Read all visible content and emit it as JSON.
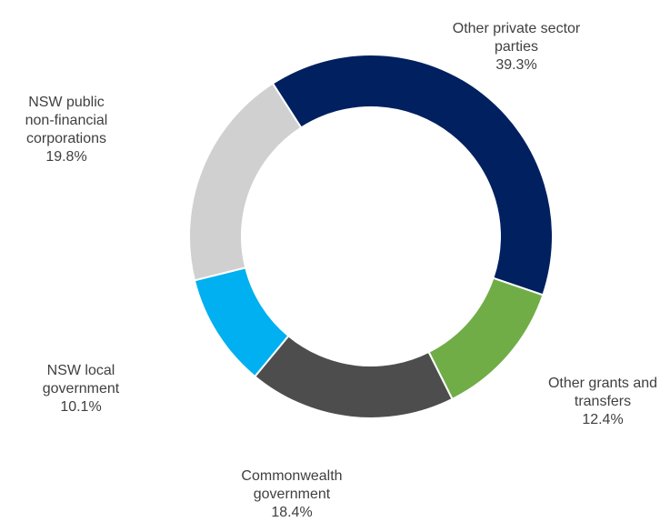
{
  "chart_data": {
    "type": "pie",
    "style": "donut",
    "start_angle_deg": -32.7,
    "direction": "clockwise",
    "slices": [
      {
        "label_lines": [
          "Other private sector",
          "parties"
        ],
        "value": 39.3,
        "value_label": "39.3%",
        "color": "#002060"
      },
      {
        "label_lines": [
          "Other grants and",
          "transfers"
        ],
        "value": 12.4,
        "value_label": "12.4%",
        "color": "#70AD47"
      },
      {
        "label_lines": [
          "Commonwealth",
          "government"
        ],
        "value": 18.4,
        "value_label": "18.4%",
        "color": "#4D4D4D"
      },
      {
        "label_lines": [
          "NSW local",
          "government"
        ],
        "value": 10.1,
        "value_label": "10.1%",
        "color": "#00B0F0"
      },
      {
        "label_lines": [
          "NSW public",
          "non-financial",
          "corporations"
        ],
        "value": 19.8,
        "value_label": "19.8%",
        "color": "#D0D0D0"
      }
    ]
  }
}
